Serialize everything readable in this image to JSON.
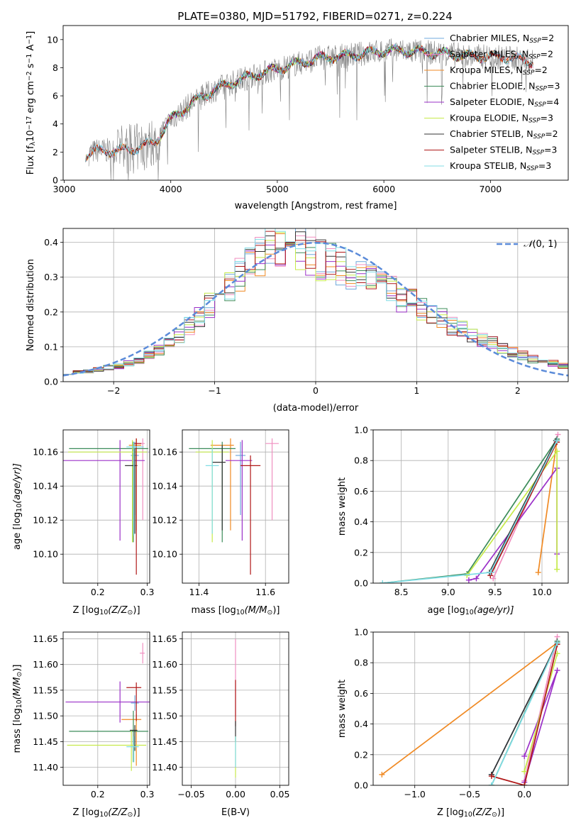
{
  "figure": {
    "title": "PLATE=0380, MJD=51792, FIBERID=0271, z=0.224"
  },
  "colors": {
    "Chabrier MILES": "#6fa8dc",
    "Salpeter MILES": "#f08fc0",
    "Kroupa MILES": "#f08a24",
    "Chabrier ELODIE": "#3c8c5a",
    "Salpeter ELODIE": "#9b30c8",
    "Kroupa ELODIE": "#c6ea4a",
    "Chabrier STELIB": "#333333",
    "Salpeter STELIB": "#b01818",
    "Kroupa STELIB": "#80dde6",
    "data": "#808080",
    "normal": "#5b8bd9"
  },
  "chart_data": [
    {
      "id": "spectrum",
      "type": "line",
      "xlabel": "wavelength [Angstrom, rest frame]",
      "ylabel_parts": [
        "Flux [f",
        "λ",
        "10",
        "−17",
        " erg cm",
        "−2",
        " s",
        "−1",
        " A",
        "−1",
        "]"
      ],
      "xlim": [
        2990,
        7730
      ],
      "ylim": [
        0,
        11
      ],
      "xticks": [
        3000,
        4000,
        5000,
        6000,
        7000
      ],
      "yticks": [
        0,
        2,
        4,
        6,
        8,
        10
      ],
      "grid": false,
      "legend_location": "upper right",
      "legend": [
        {
          "model": "Chabrier MILES",
          "label": "Chabrier MILES, N",
          "sub": "SSP",
          "tail": "=2"
        },
        {
          "model": "Salpeter MILES",
          "label": "Salpeter MILES, N",
          "sub": "SSP",
          "tail": "=2"
        },
        {
          "model": "Kroupa MILES",
          "label": "Kroupa MILES, N",
          "sub": "SSP",
          "tail": "=2"
        },
        {
          "model": "Chabrier ELODIE",
          "label": "Chabrier ELODIE, N",
          "sub": "SSP",
          "tail": "=3"
        },
        {
          "model": "Salpeter ELODIE",
          "label": "Salpeter ELODIE, N",
          "sub": "SSP",
          "tail": "=4"
        },
        {
          "model": "Kroupa ELODIE",
          "label": "Kroupa ELODIE, N",
          "sub": "SSP",
          "tail": "=3"
        },
        {
          "model": "Chabrier STELIB",
          "label": "Chabrier STELIB, N",
          "sub": "SSP",
          "tail": "=2"
        },
        {
          "model": "Salpeter STELIB",
          "label": "Salpeter STELIB, N",
          "sub": "SSP",
          "tail": "=3"
        },
        {
          "model": "Kroupa STELIB",
          "label": "Kroupa STELIB, N",
          "sub": "SSP",
          "tail": "=3"
        }
      ],
      "continuum": {
        "x": [
          3200,
          3300,
          3500,
          3700,
          3850,
          4000,
          4200,
          4400,
          4600,
          4800,
          5000,
          5200,
          5400,
          5600,
          5800,
          6000,
          6200,
          6400,
          6600,
          6800,
          7000,
          7200,
          7400
        ],
        "y": [
          1.8,
          2.1,
          2.1,
          2.3,
          2.7,
          4.3,
          5.5,
          6.4,
          7.0,
          7.5,
          7.9,
          8.3,
          8.7,
          8.8,
          9.0,
          9.2,
          9.2,
          9.1,
          9.0,
          8.8,
          8.8,
          8.7,
          8.4
        ]
      },
      "data_range": [
        3230,
        7400
      ],
      "model_ranges": {
        "MILES": [
          3200,
          7400
        ],
        "ELODIE": [
          3900,
          6800
        ],
        "STELIB": [
          3200,
          7400
        ]
      }
    },
    {
      "id": "residuals",
      "type": "histogram",
      "xlabel": "(data-model)/error",
      "ylabel": "Normed distribution",
      "xlim": [
        -2.5,
        2.5
      ],
      "ylim": [
        0,
        0.44
      ],
      "xticks": [
        -2,
        -1,
        0,
        1,
        2
      ],
      "yticks": [
        0.0,
        0.1,
        0.2,
        0.3,
        0.4
      ],
      "grid": true,
      "legend_location": "upper right",
      "legend": [
        {
          "label_pre": "𝒩",
          "label_post": "(0, 1)",
          "style": "dashed"
        }
      ],
      "bins": 50,
      "envelope": [
        0.025,
        0.027,
        0.03,
        0.035,
        0.04,
        0.045,
        0.052,
        0.06,
        0.075,
        0.09,
        0.11,
        0.13,
        0.16,
        0.19,
        0.22,
        0.25,
        0.28,
        0.31,
        0.34,
        0.365,
        0.385,
        0.395,
        0.39,
        0.38,
        0.37,
        0.35,
        0.34,
        0.33,
        0.32,
        0.31,
        0.29,
        0.27,
        0.26,
        0.24,
        0.23,
        0.21,
        0.19,
        0.18,
        0.16,
        0.15,
        0.13,
        0.12,
        0.11,
        0.095,
        0.085,
        0.075,
        0.065,
        0.058,
        0.052,
        0.046
      ]
    },
    {
      "id": "age-vs-Z",
      "type": "errorbar",
      "xlabel_parts": [
        "Z [log",
        "10",
        "(Z/Z",
        "⊙",
        ")]"
      ],
      "ylabel_parts": [
        "age  [log",
        "10",
        "(age/yr)]"
      ],
      "xlim": [
        0.13,
        0.305
      ],
      "ylim": [
        10.083,
        10.173
      ],
      "xticks": [
        0.2,
        0.3
      ],
      "yticks": [
        10.1,
        10.12,
        10.14,
        10.16
      ],
      "grid": true,
      "points": [
        {
          "model": "Chabrier MILES",
          "x": 0.275,
          "xerr": [
            0.008,
            0.008
          ],
          "y": 10.158,
          "yerr": [
            0.035,
            0.008
          ]
        },
        {
          "model": "Salpeter MILES",
          "x": 0.291,
          "xerr": [
            0.006,
            0.004
          ],
          "y": 10.165,
          "yerr": [
            0.045,
            0.003
          ]
        },
        {
          "model": "Kroupa MILES",
          "x": 0.278,
          "xerr": [
            0.015,
            0.01
          ],
          "y": 10.164,
          "yerr": [
            0.05,
            0.004
          ]
        },
        {
          "model": "Chabrier ELODIE",
          "x": 0.272,
          "xerr": [
            0.13,
            0.03
          ],
          "y": 10.162,
          "yerr": [
            0.055,
            0.004
          ]
        },
        {
          "model": "Salpeter ELODIE",
          "x": 0.245,
          "xerr": [
            0.12,
            0.05
          ],
          "y": 10.155,
          "yerr": [
            0.047,
            0.012
          ]
        },
        {
          "model": "Kroupa ELODIE",
          "x": 0.27,
          "xerr": [
            0.13,
            0.03
          ],
          "y": 10.16,
          "yerr": [
            0.053,
            0.007
          ]
        },
        {
          "model": "Chabrier STELIB",
          "x": 0.275,
          "xerr": [
            0.02,
            0.005
          ],
          "y": 10.152,
          "yerr": [
            0.04,
            0.01
          ]
        },
        {
          "model": "Salpeter STELIB",
          "x": 0.278,
          "xerr": [
            0.005,
            0.01
          ],
          "y": 10.165,
          "yerr": [
            0.077,
            0.003
          ]
        },
        {
          "model": "Kroupa STELIB",
          "x": 0.273,
          "xerr": [
            0.015,
            0.02
          ],
          "y": 10.163,
          "yerr": [
            0.052,
            0.003
          ]
        }
      ]
    },
    {
      "id": "age-vs-mass",
      "type": "errorbar",
      "xlabel_parts": [
        "mass [log",
        "10",
        "(M/M",
        "⊙",
        ")]"
      ],
      "xlim": [
        11.35,
        11.67
      ],
      "ylim": [
        10.083,
        10.173
      ],
      "xticks": [
        11.4,
        11.6
      ],
      "yticks": [
        10.1,
        10.12,
        10.14,
        10.16
      ],
      "grid": true,
      "points": [
        {
          "model": "Chabrier MILES",
          "x": 11.525,
          "xerr": [
            0.015,
            0.015
          ],
          "y": 10.158,
          "yerr": [
            0.035,
            0.008
          ]
        },
        {
          "model": "Salpeter MILES",
          "x": 11.62,
          "xerr": [
            0.02,
            0.02
          ],
          "y": 10.165,
          "yerr": [
            0.045,
            0.003
          ]
        },
        {
          "model": "Kroupa MILES",
          "x": 11.495,
          "xerr": [
            0.06,
            0.01
          ],
          "y": 10.164,
          "yerr": [
            0.05,
            0.004
          ]
        },
        {
          "model": "Chabrier ELODIE",
          "x": 11.47,
          "xerr": [
            0.1,
            0.04
          ],
          "y": 10.162,
          "yerr": [
            0.055,
            0.004
          ]
        },
        {
          "model": "Salpeter ELODIE",
          "x": 11.53,
          "xerr": [
            0.05,
            0.03
          ],
          "y": 10.155,
          "yerr": [
            0.047,
            0.012
          ]
        },
        {
          "model": "Kroupa ELODIE",
          "x": 11.44,
          "xerr": [
            0.05,
            0.05
          ],
          "y": 10.16,
          "yerr": [
            0.053,
            0.007
          ]
        },
        {
          "model": "Chabrier STELIB",
          "x": 11.47,
          "xerr": [
            0.03,
            0.01
          ],
          "y": 10.154,
          "yerr": [
            0.04,
            0.01
          ]
        },
        {
          "model": "Salpeter STELIB",
          "x": 11.555,
          "xerr": [
            0.03,
            0.03
          ],
          "y": 10.152,
          "yerr": [
            0.064,
            0.006
          ]
        },
        {
          "model": "Kroupa STELIB",
          "x": 11.44,
          "xerr": [
            0.02,
            0.02
          ],
          "y": 10.152,
          "yerr": [
            0.04,
            0.01
          ]
        }
      ]
    },
    {
      "id": "weight-vs-age",
      "type": "line",
      "xlabel_parts": [
        "age  [log",
        "10",
        "(age/yr)]"
      ],
      "ylabel": "mass weight",
      "xlim": [
        8.2,
        10.28
      ],
      "ylim": [
        0,
        1
      ],
      "xticks": [
        8.5,
        9.0,
        9.5,
        10.0
      ],
      "yticks": [
        0.0,
        0.2,
        0.4,
        0.6,
        0.8,
        1.0
      ],
      "grid": true,
      "series": [
        {
          "model": "Chabrier MILES",
          "x": [
            9.46,
            10.16
          ],
          "y": [
            0.07,
            0.93
          ]
        },
        {
          "model": "Salpeter MILES",
          "x": [
            9.48,
            10.17
          ],
          "y": [
            0.03,
            0.97
          ]
        },
        {
          "model": "Kroupa MILES",
          "x": [
            9.96,
            10.16
          ],
          "y": [
            0.07,
            0.93
          ]
        },
        {
          "model": "Chabrier ELODIE",
          "x": [
            8.3,
            9.2,
            10.16
          ],
          "y": [
            0.0,
            0.06,
            0.94
          ]
        },
        {
          "model": "Salpeter ELODIE",
          "x": [
            9.22,
            9.3,
            10.16,
            10.16
          ],
          "y": [
            0.02,
            0.03,
            0.75,
            0.19
          ]
        },
        {
          "model": "Kroupa ELODIE",
          "x": [
            9.2,
            10.16,
            10.16
          ],
          "y": [
            0.05,
            0.86,
            0.09
          ]
        },
        {
          "model": "Chabrier STELIB",
          "x": [
            9.44,
            10.15
          ],
          "y": [
            0.07,
            0.93
          ]
        },
        {
          "model": "Salpeter STELIB",
          "x": [
            9.45,
            10.16
          ],
          "y": [
            0.05,
            0.92
          ]
        },
        {
          "model": "Kroupa STELIB",
          "x": [
            8.3,
            9.45,
            10.16
          ],
          "y": [
            0.0,
            0.07,
            0.93
          ]
        }
      ]
    },
    {
      "id": "mass-vs-Z",
      "type": "errorbar",
      "xlabel_parts": [
        "Z [log",
        "10",
        "(Z/Z",
        "⊙",
        ")]"
      ],
      "ylabel_parts": [
        "mass [log",
        "10",
        "(M/M",
        "⊙",
        ")]"
      ],
      "xlim": [
        0.13,
        0.305
      ],
      "ylim": [
        11.365,
        11.663
      ],
      "xticks": [
        0.2,
        0.3
      ],
      "yticks": [
        11.4,
        11.45,
        11.5,
        11.55,
        11.6,
        11.65
      ],
      "grid": true,
      "points": [
        {
          "model": "Chabrier MILES",
          "x": 0.275,
          "xerr": [
            0.008,
            0.008
          ],
          "y": 11.525,
          "yerr": [
            0.015,
            0.015
          ]
        },
        {
          "model": "Salpeter MILES",
          "x": 0.291,
          "xerr": [
            0.006,
            0.004
          ],
          "y": 11.622,
          "yerr": [
            0.02,
            0.02
          ]
        },
        {
          "model": "Kroupa MILES",
          "x": 0.278,
          "xerr": [
            0.03,
            0.01
          ],
          "y": 11.493,
          "yerr": [
            0.09,
            0.01
          ]
        },
        {
          "model": "Chabrier ELODIE",
          "x": 0.272,
          "xerr": [
            0.13,
            0.03
          ],
          "y": 11.47,
          "yerr": [
            0.06,
            0.04
          ]
        },
        {
          "model": "Salpeter ELODIE",
          "x": 0.245,
          "xerr": [
            0.11,
            0.06
          ],
          "y": 11.527,
          "yerr": [
            0.04,
            0.04
          ]
        },
        {
          "model": "Kroupa ELODIE",
          "x": 0.268,
          "xerr": [
            0.13,
            0.03
          ],
          "y": 11.443,
          "yerr": [
            0.05,
            0.03
          ]
        },
        {
          "model": "Chabrier STELIB",
          "x": 0.275,
          "xerr": [
            0.01,
            0.005
          ],
          "y": 11.472,
          "yerr": [
            0.04,
            0.01
          ]
        },
        {
          "model": "Salpeter STELIB",
          "x": 0.278,
          "xerr": [
            0.02,
            0.01
          ],
          "y": 11.555,
          "yerr": [
            0.065,
            0.01
          ]
        },
        {
          "model": "Kroupa STELIB",
          "x": 0.273,
          "xerr": [
            0.015,
            0.01
          ],
          "y": 11.44,
          "yerr": [
            0.03,
            0.02
          ]
        }
      ]
    },
    {
      "id": "mass-vs-EBV",
      "type": "errorbar",
      "xlabel": "E(B-V)",
      "xlim": [
        -0.06,
        0.06
      ],
      "ylim": [
        11.365,
        11.663
      ],
      "xticks": [
        -0.05,
        0.0,
        0.05
      ],
      "yticks": [
        11.4,
        11.45,
        11.5,
        11.55,
        11.6,
        11.65
      ],
      "grid": true,
      "points": [
        {
          "model": "Salpeter MILES",
          "x": 0.0,
          "xerr": [
            0,
            0
          ],
          "y": 11.58,
          "yerr": [
            0.08,
            0.07
          ]
        },
        {
          "model": "Salpeter STELIB",
          "x": 0.0,
          "xerr": [
            0,
            0
          ],
          "y": 11.53,
          "yerr": [
            0.05,
            0.04
          ]
        },
        {
          "model": "Chabrier STELIB",
          "x": 0.0,
          "xerr": [
            0,
            0
          ],
          "y": 11.47,
          "yerr": [
            0.02,
            0.02
          ]
        },
        {
          "model": "Kroupa ELODIE",
          "x": 0.0,
          "xerr": [
            0,
            0
          ],
          "y": 11.42,
          "yerr": [
            0.04,
            0.04
          ]
        },
        {
          "model": "Kroupa STELIB",
          "x": 0.0,
          "xerr": [
            0,
            0
          ],
          "y": 11.43,
          "yerr": [
            0.03,
            0.03
          ]
        }
      ]
    },
    {
      "id": "weight-vs-Z",
      "type": "line",
      "xlabel_parts": [
        "Z [log",
        "10",
        "(Z/Z",
        "⊙",
        ")]"
      ],
      "ylabel": "mass weight",
      "xlim": [
        -1.38,
        0.4
      ],
      "ylim": [
        0,
        1
      ],
      "xticks": [
        -1.0,
        -0.5,
        0.0
      ],
      "yticks": [
        0.0,
        0.2,
        0.4,
        0.6,
        0.8,
        1.0
      ],
      "grid": true,
      "series": [
        {
          "model": "Chabrier MILES",
          "x": [
            -0.3,
            0.3
          ],
          "y": [
            0.07,
            0.93
          ]
        },
        {
          "model": "Salpeter MILES",
          "x": [
            0.0,
            0.3
          ],
          "y": [
            0.03,
            0.97
          ]
        },
        {
          "model": "Kroupa MILES",
          "x": [
            -1.3,
            0.3
          ],
          "y": [
            0.07,
            0.93
          ]
        },
        {
          "model": "Chabrier ELODIE",
          "x": [
            -0.3,
            0.3
          ],
          "y": [
            0.0,
            0.94
          ]
        },
        {
          "model": "Salpeter ELODIE",
          "x": [
            0.0,
            0.3,
            0.0
          ],
          "y": [
            0.02,
            0.75,
            0.19
          ]
        },
        {
          "model": "Kroupa ELODIE",
          "x": [
            0.0,
            0.3
          ],
          "y": [
            0.09,
            0.86
          ]
        },
        {
          "model": "Chabrier STELIB",
          "x": [
            -0.3,
            0.3
          ],
          "y": [
            0.07,
            0.93
          ]
        },
        {
          "model": "Salpeter STELIB",
          "x": [
            -0.3,
            0.0,
            0.3
          ],
          "y": [
            0.06,
            0.0,
            0.92
          ]
        },
        {
          "model": "Kroupa STELIB",
          "x": [
            -0.3,
            0.3
          ],
          "y": [
            0.0,
            0.93
          ]
        }
      ]
    }
  ]
}
